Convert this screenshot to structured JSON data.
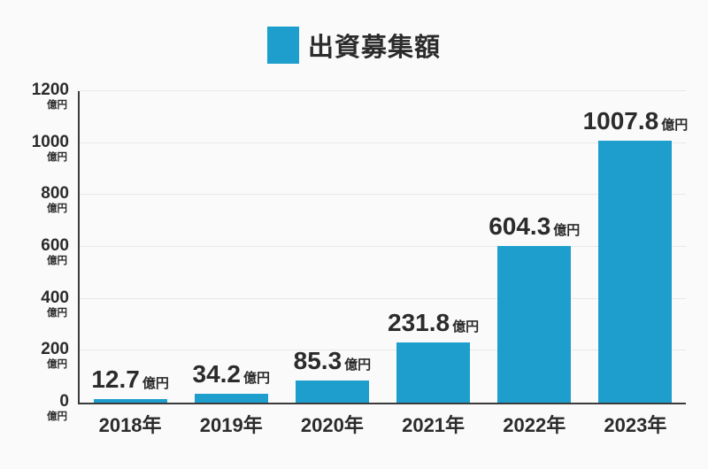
{
  "legend": {
    "label": "出資募集額"
  },
  "chart_data": {
    "type": "bar",
    "title": "出資募集額",
    "categories": [
      "2018年",
      "2019年",
      "2020年",
      "2021年",
      "2022年",
      "2023年"
    ],
    "values": [
      12.7,
      34.2,
      85.3,
      231.8,
      604.3,
      1007.8
    ],
    "value_labels": [
      "12.7",
      "34.2",
      "85.3",
      "231.8",
      "604.3",
      "1007.8"
    ],
    "value_unit": "億円",
    "xlabel": "",
    "ylabel": "億円",
    "ylim": [
      0,
      1200
    ],
    "yticks": [
      0,
      200,
      400,
      600,
      800,
      1000,
      1200
    ],
    "ytick_unit": "億円",
    "grid": true,
    "legend_position": "top"
  },
  "colors": {
    "bar": "#1e9ecd",
    "accent": "#1e9ecd",
    "text": "#2b2b2b",
    "axis": "#3a3a3a",
    "gridline": "#e8e8e8",
    "background": "#fafafa"
  }
}
